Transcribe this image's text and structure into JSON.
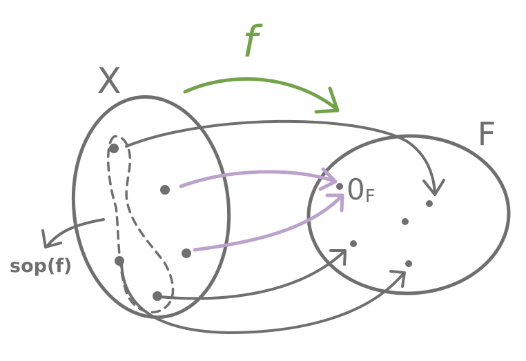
{
  "labels": {
    "domain_set": "X",
    "codomain_set": "F",
    "map": "f",
    "zero_element": "0",
    "zero_subscript": "F",
    "support": "sop(f)"
  },
  "colors": {
    "ink": "#6f6f6f",
    "map_arrow": "#72a24a",
    "zero_arrows": "#bba2cd",
    "background": "#ffffff"
  }
}
